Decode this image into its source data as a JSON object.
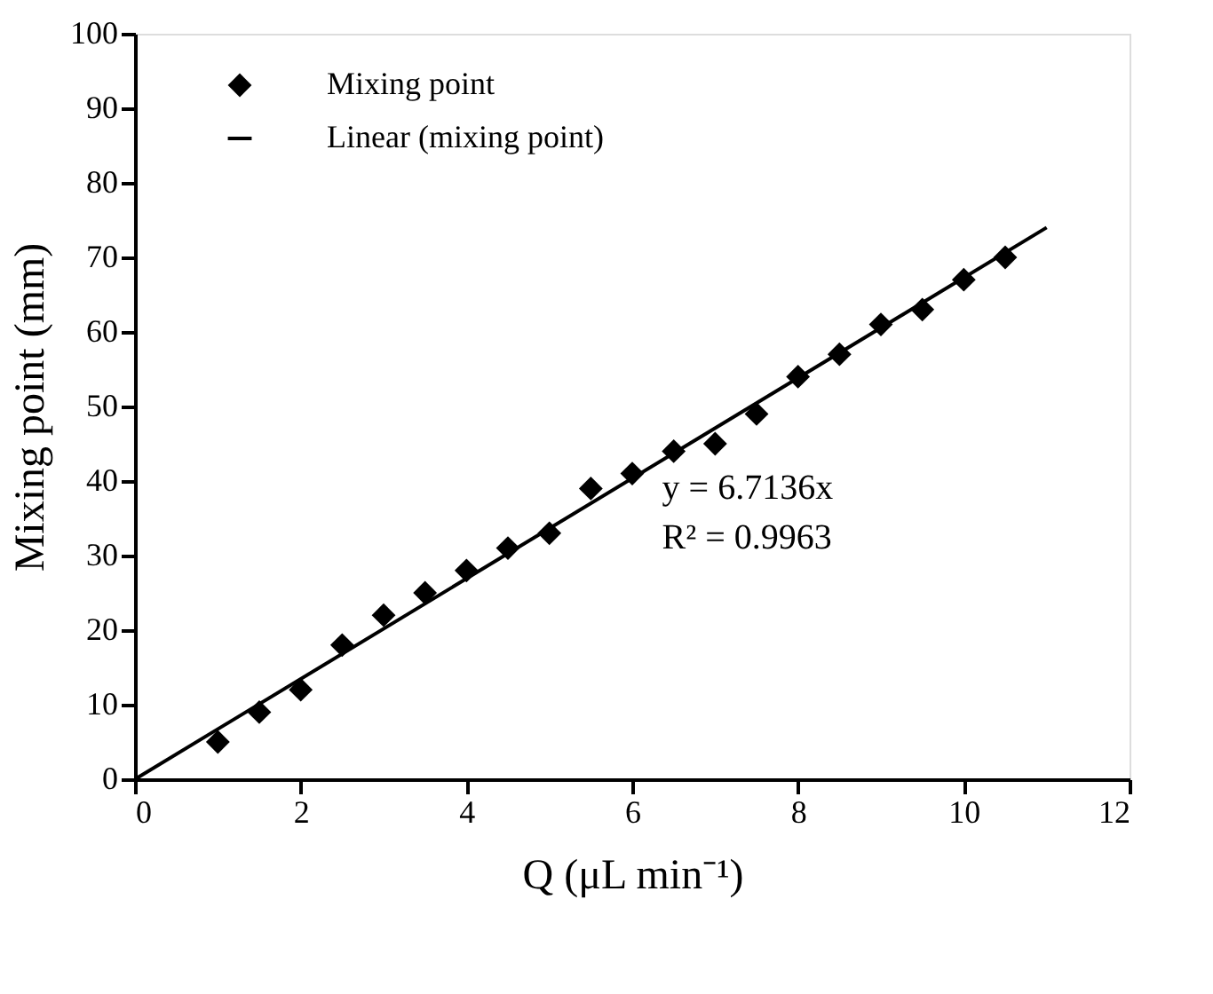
{
  "chart_data": {
    "type": "scatter",
    "xlabel": "Q (μL min⁻¹)",
    "ylabel": "Mixing point (mm)",
    "xlim": [
      0,
      12
    ],
    "ylim": [
      0,
      100
    ],
    "xticks": [
      0,
      2,
      4,
      6,
      8,
      10,
      12
    ],
    "yticks": [
      0,
      10,
      20,
      30,
      40,
      50,
      60,
      70,
      80,
      90,
      100
    ],
    "grid": false,
    "legend": "top left",
    "series": [
      {
        "name": "Mixing point",
        "color": "#000000",
        "marker": "diamond",
        "x": [
          1,
          1.5,
          2,
          2.5,
          3,
          3.5,
          4,
          4.5,
          5,
          5.5,
          6,
          6.5,
          7,
          7.5,
          8,
          8.5,
          9,
          9.5,
          10,
          10.5
        ],
        "values": [
          5,
          9,
          12,
          18,
          22,
          25,
          28,
          31,
          33,
          39,
          41,
          44,
          45,
          49,
          54,
          57,
          61,
          63,
          67,
          70
        ]
      },
      {
        "name": "Linear (mixing point)",
        "type": "line",
        "color": "#000000",
        "line_style": "solid",
        "x": [
          0,
          11
        ],
        "values": [
          0,
          74
        ]
      }
    ],
    "annotations": [
      "y = 6.7136x",
      "R² = 0.9963"
    ]
  }
}
